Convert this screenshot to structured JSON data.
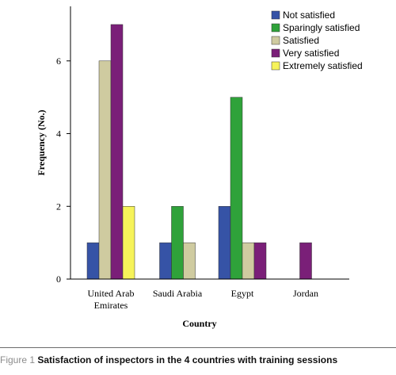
{
  "chart_data": {
    "type": "bar",
    "xlabel": "Country",
    "ylabel": "Frequency (No.)",
    "ylim": [
      0,
      7.5
    ],
    "yticks": [
      0,
      2,
      4,
      6
    ],
    "categories": [
      "United Arab\nEmirates",
      "Saudi Arabia",
      "Egypt",
      "Jordan"
    ],
    "series": [
      {
        "name": "Not satisfied",
        "color": "#3653a6",
        "values": [
          1,
          1,
          2,
          0
        ]
      },
      {
        "name": "Sparingly satisfied",
        "color": "#2fa23a",
        "values": [
          0,
          2,
          5,
          0
        ]
      },
      {
        "name": "Satisfied",
        "color": "#cfcba0",
        "values": [
          6,
          1,
          1,
          0
        ]
      },
      {
        "name": "Very satisfied",
        "color": "#7a1f78",
        "values": [
          7,
          0,
          1,
          1
        ]
      },
      {
        "name": "Extremely satisfied",
        "color": "#f6f35a",
        "values": [
          2,
          0,
          0,
          0
        ]
      }
    ],
    "legend_position": "top-right",
    "grid": false
  },
  "caption": {
    "figure_label": "Figure 1",
    "text": "Satisfaction of inspectors in the 4 countries with training sessions"
  }
}
